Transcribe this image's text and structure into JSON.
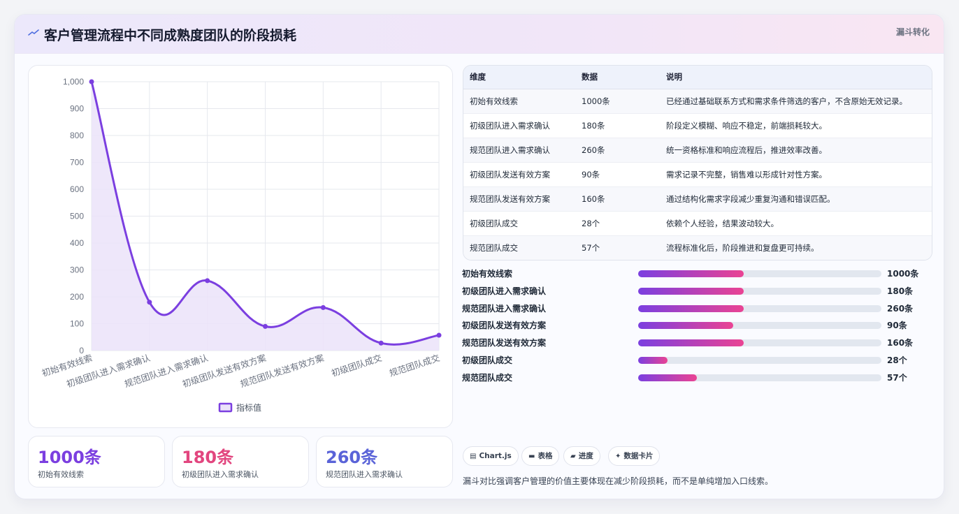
{
  "header": {
    "title": "客户管理流程中不同成熟度团队的阶段损耗",
    "tag": "漏斗转化",
    "logo_icon": "trend-line-icon"
  },
  "chart_data": {
    "type": "line",
    "categories": [
      "初始有效线索",
      "初级团队进入需求确认",
      "规范团队进入需求确认",
      "初级团队发送有效方案",
      "规范团队发送有效方案",
      "初级团队成交",
      "规范团队成交"
    ],
    "series": [
      {
        "name": "指标值",
        "values": [
          1000,
          180,
          260,
          90,
          160,
          28,
          57
        ]
      }
    ],
    "yticks": [
      "0",
      "100",
      "200",
      "300",
      "400",
      "500",
      "600",
      "700",
      "800",
      "900",
      "1,000"
    ],
    "ylim": [
      0,
      1000
    ],
    "grid": true,
    "legend_position": "bottom",
    "line_color": "#7b3fe0",
    "fill_color": "#ebe3f9"
  },
  "table": {
    "headers": [
      "维度",
      "数据",
      "说明"
    ],
    "rows": [
      [
        "初始有效线索",
        "1000条",
        "已经通过基础联系方式和需求条件筛选的客户，不含原始无效记录。"
      ],
      [
        "初级团队进入需求确认",
        "180条",
        "阶段定义模糊、响应不稳定，前端损耗较大。"
      ],
      [
        "规范团队进入需求确认",
        "260条",
        "统一资格标准和响应流程后，推进效率改善。"
      ],
      [
        "初级团队发送有效方案",
        "90条",
        "需求记录不完整，销售难以形成针对性方案。"
      ],
      [
        "规范团队发送有效方案",
        "160条",
        "通过结构化需求字段减少重复沟通和错误匹配。"
      ],
      [
        "初级团队成交",
        "28个",
        "依赖个人经验，结果波动较大。"
      ],
      [
        "规范团队成交",
        "57个",
        "流程标准化后，阶段推进和复盘更可持续。"
      ]
    ]
  },
  "progress": [
    {
      "label": "初始有效线索",
      "value": "1000条",
      "fill": 0.435
    },
    {
      "label": "初级团队进入需求确认",
      "value": "180条",
      "fill": 0.435
    },
    {
      "label": "规范团队进入需求确认",
      "value": "260条",
      "fill": 0.435
    },
    {
      "label": "初级团队发送有效方案",
      "value": "90条",
      "fill": 0.39
    },
    {
      "label": "规范团队发送有效方案",
      "value": "160条",
      "fill": 0.435
    },
    {
      "label": "初级团队成交",
      "value": "28个",
      "fill": 0.12
    },
    {
      "label": "规范团队成交",
      "value": "57个",
      "fill": 0.24
    }
  ],
  "stats": [
    {
      "value": "1000条",
      "label": "初始有效线索",
      "color": "#7b3fe0"
    },
    {
      "value": "180条",
      "label": "初级团队进入需求确认",
      "color": "#e2467f"
    },
    {
      "value": "260条",
      "label": "规范团队进入需求确认",
      "color": "#5a63d8"
    }
  ],
  "chips": [
    {
      "icon": "chart-icon",
      "glyph": "▤",
      "label": "Chart.js"
    },
    {
      "icon": "table-icon",
      "glyph": "▬",
      "label": "表格"
    },
    {
      "icon": "progress-icon",
      "glyph": "▰",
      "label": "进度"
    },
    {
      "icon": "sparkle-icon",
      "glyph": "✦",
      "label": "数据卡片"
    }
  ],
  "footnote": "漏斗对比强调客户管理的价值主要体现在减少阶段损耗，而不是单纯增加入口线索。"
}
